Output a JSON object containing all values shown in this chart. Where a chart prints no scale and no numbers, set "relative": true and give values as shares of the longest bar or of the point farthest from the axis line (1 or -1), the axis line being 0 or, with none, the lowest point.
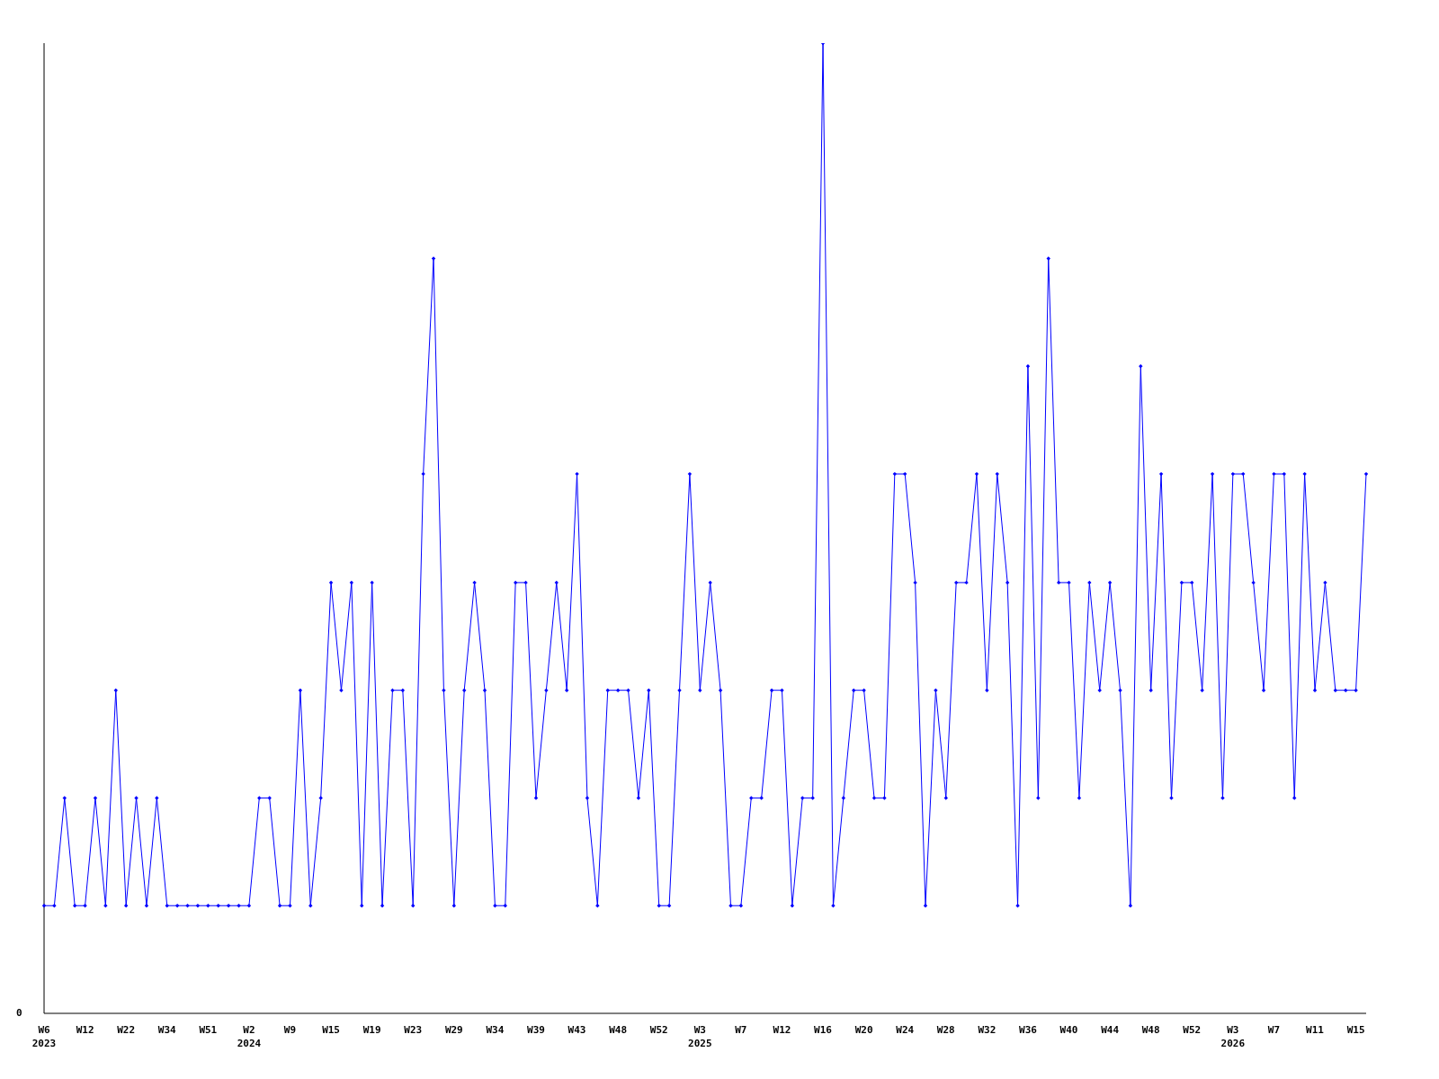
{
  "chart_data": {
    "type": "line",
    "relative": true,
    "color": "#0000ff",
    "marker": "diamond",
    "grid": false,
    "legend": false,
    "annotations": [
      "0"
    ],
    "categories": [
      "W6\n2023",
      null,
      null,
      null,
      "W12",
      null,
      null,
      null,
      "W22",
      null,
      null,
      null,
      "W34",
      null,
      null,
      null,
      "W51",
      null,
      null,
      null,
      "W2\n2024",
      null,
      null,
      null,
      "W9",
      null,
      null,
      null,
      "W15",
      null,
      null,
      null,
      "W19",
      null,
      null,
      null,
      "W23",
      null,
      null,
      null,
      "W29",
      null,
      null,
      null,
      "W34",
      null,
      null,
      null,
      "W39",
      null,
      null,
      null,
      "W43",
      null,
      null,
      null,
      "W48",
      null,
      null,
      null,
      "W52",
      null,
      null,
      null,
      "W3\n2025",
      null,
      null,
      null,
      "W7",
      null,
      null,
      null,
      "W12",
      null,
      null,
      null,
      "W16",
      null,
      null,
      null,
      "W20",
      null,
      null,
      null,
      "W24",
      null,
      null,
      null,
      "W28",
      null,
      null,
      null,
      "W32",
      null,
      null,
      null,
      "W36",
      null,
      null,
      null,
      "W40",
      null,
      null,
      null,
      "W44",
      null,
      null,
      null,
      "W48",
      null,
      null,
      null,
      "W52",
      null,
      null,
      null,
      "W3\n2026",
      null,
      null,
      null,
      "W7",
      null,
      null,
      null,
      "W11",
      null,
      null,
      null,
      "W15",
      null
    ],
    "values": [
      0.111,
      0.111,
      0.222,
      0.111,
      0.111,
      0.222,
      0.111,
      0.333,
      0.111,
      0.222,
      0.111,
      0.222,
      0.111,
      0.111,
      0.111,
      0.111,
      0.111,
      0.111,
      0.111,
      0.111,
      0.111,
      0.222,
      0.222,
      0.111,
      0.111,
      0.333,
      0.111,
      0.222,
      0.444,
      0.333,
      0.444,
      0.111,
      0.444,
      0.111,
      0.333,
      0.333,
      0.111,
      0.556,
      0.778,
      0.333,
      0.111,
      0.333,
      0.444,
      0.333,
      0.111,
      0.111,
      0.444,
      0.444,
      0.222,
      0.333,
      0.444,
      0.333,
      0.556,
      0.222,
      0.111,
      0.333,
      0.333,
      0.333,
      0.222,
      0.333,
      0.111,
      0.111,
      0.333,
      0.556,
      0.333,
      0.444,
      0.333,
      0.111,
      0.111,
      0.222,
      0.222,
      0.333,
      0.333,
      0.111,
      0.222,
      0.222,
      1,
      0.111,
      0.222,
      0.333,
      0.333,
      0.222,
      0.222,
      0.556,
      0.556,
      0.444,
      0.111,
      0.333,
      0.222,
      0.444,
      0.444,
      0.556,
      0.333,
      0.556,
      0.444,
      0.111,
      0.667,
      0.222,
      0.778,
      0.444,
      0.444,
      0.222,
      0.444,
      0.333,
      0.444,
      0.333,
      0.111,
      0.667,
      0.333,
      0.556,
      0.222,
      0.444,
      0.444,
      0.333,
      0.556,
      0.222,
      0.556,
      0.556,
      0.444,
      0.333,
      0.556,
      0.556,
      0.222,
      0.556,
      0.333,
      0.444,
      0.333,
      0.333,
      0.333,
      0.556
    ]
  }
}
